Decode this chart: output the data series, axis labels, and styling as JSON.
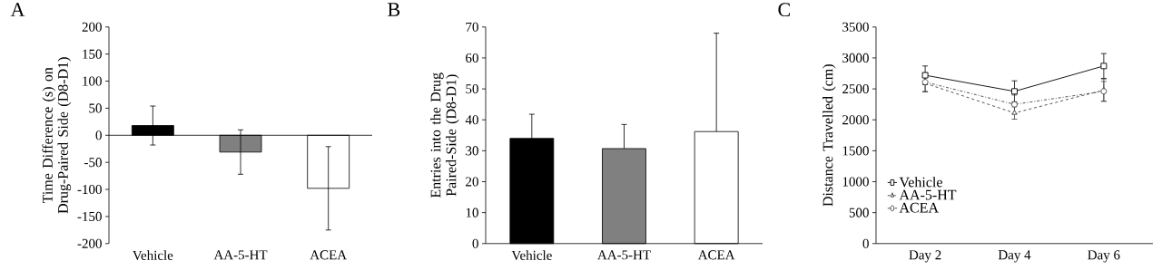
{
  "chart_data": [
    {
      "type": "bar",
      "title": "A",
      "ylabel": "Time Difference (s) on Drug-Paired Side (D8-D1)",
      "categories": [
        "Vehicle",
        "AA-5-HT",
        "ACEA"
      ],
      "values": [
        18,
        -31,
        -98
      ],
      "colors": [
        "#000000",
        "#808080",
        "#ffffff"
      ],
      "errors": [
        36,
        41,
        77
      ],
      "ylim": [
        -200,
        200
      ],
      "yticks": [
        -200,
        -150,
        -100,
        -50,
        0,
        50,
        100,
        150,
        200
      ]
    },
    {
      "type": "bar",
      "title": "B",
      "ylabel": "Entries into the Drug Paired-Side (D8-D1)",
      "categories": [
        "Vehicle",
        "AA-5-HT",
        "ACEA"
      ],
      "values": [
        34,
        30.7,
        36.2
      ],
      "colors": [
        "#000000",
        "#808080",
        "#ffffff"
      ],
      "errors": [
        [
          34,
          41.8
        ],
        [
          30.7,
          38.5
        ],
        [
          36.2,
          68
        ]
      ],
      "ylim": [
        0,
        70
      ],
      "yticks": [
        0,
        10,
        20,
        30,
        40,
        50,
        60,
        70
      ]
    },
    {
      "type": "line",
      "title": "C",
      "ylabel": "Distance Travelled (cm)",
      "categories": [
        "Day 2",
        "Day 4",
        "Day 6"
      ],
      "ylim": [
        0,
        3500
      ],
      "yticks": [
        0,
        500,
        1000,
        1500,
        2000,
        2500,
        3000,
        3500
      ],
      "legend": "bottom left",
      "series": [
        {
          "name": "Vehicle",
          "color": "#000000",
          "values": [
            2720,
            2460,
            2870
          ],
          "errors": [
            150,
            170,
            200
          ],
          "marker": "square",
          "line_style": "solid"
        },
        {
          "name": "AA-5-HT",
          "color": "#404040",
          "values": [
            2590,
            2110,
            2480
          ],
          "errors": [
            140,
            100,
            180
          ],
          "marker": "triangle",
          "line_style": "dashed"
        },
        {
          "name": "ACEA",
          "color": "#404040",
          "values": [
            2610,
            2250,
            2460
          ],
          "errors": [
            150,
            150,
            160
          ],
          "marker": "circle",
          "line_style": "dotted"
        }
      ]
    }
  ]
}
